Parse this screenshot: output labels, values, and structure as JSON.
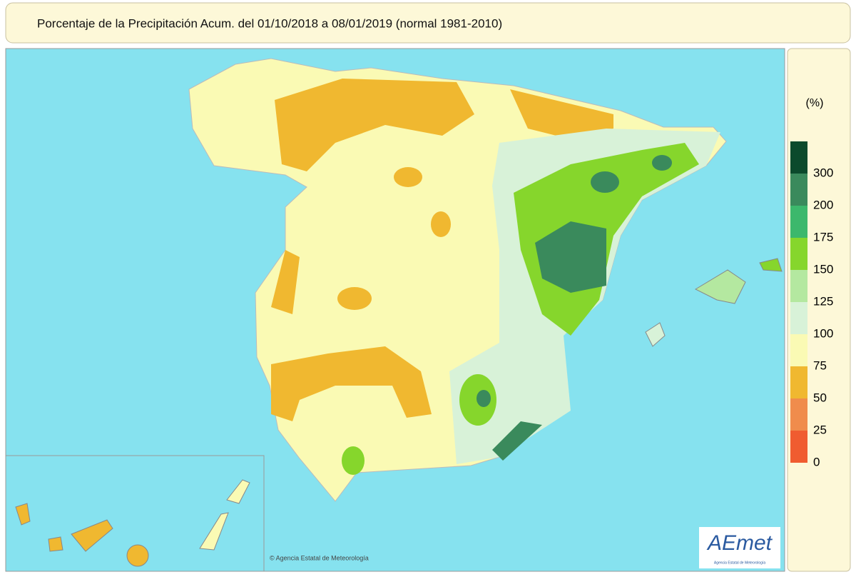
{
  "title": "Porcentaje de la Precipitación Acum. del 01/10/2018 a  08/01/2019  (normal 1981-2010)",
  "legend": {
    "unit": "(%)",
    "colors": [
      "#0b4a2c",
      "#3a8a5c",
      "#3cb86c",
      "#86d62c",
      "#b4e8a0",
      "#d8f2d8",
      "#fafab4",
      "#f0b830",
      "#f08c4c",
      "#f05c30"
    ],
    "labels": [
      300,
      200,
      175,
      150,
      125,
      100,
      75,
      50,
      25,
      0
    ]
  },
  "credit": "© Agencia Estatal de Meteorología",
  "logo": {
    "name": "AEmet",
    "subtitle": "Agencia Estatal de Meteorología"
  }
}
